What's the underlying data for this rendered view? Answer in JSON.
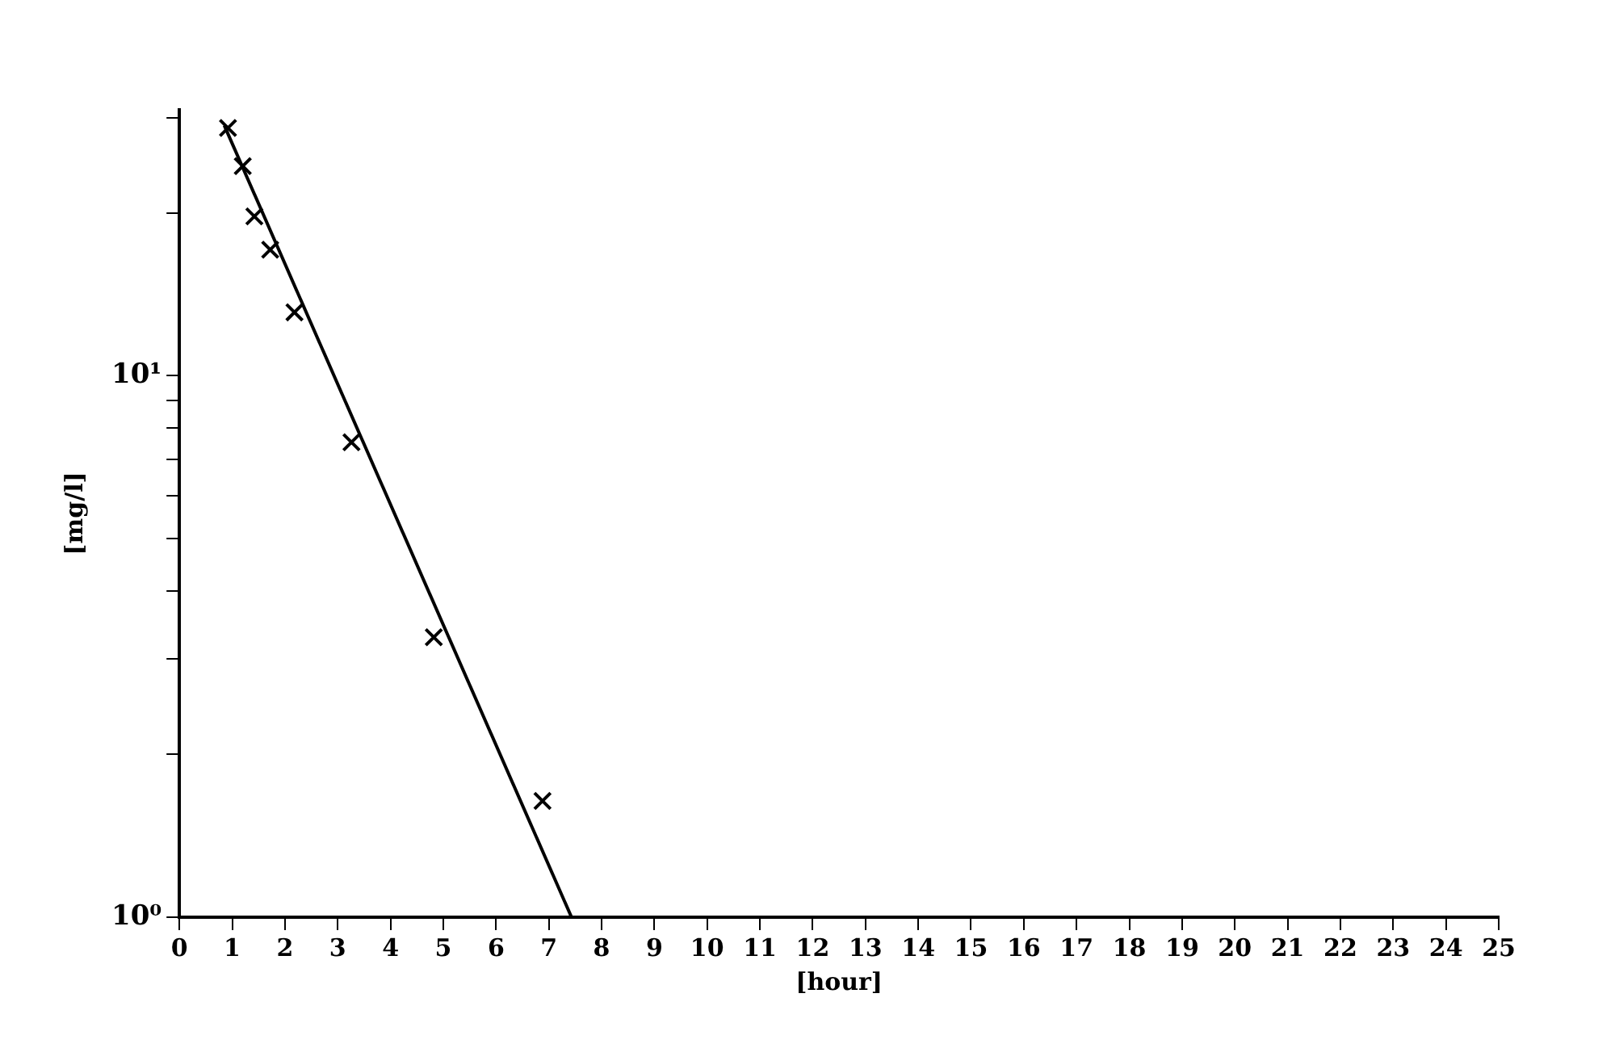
{
  "chart_data": {
    "type": "scatter",
    "xlabel": "[hour]",
    "ylabel": "[mg/l]",
    "log": "y",
    "grid": false,
    "legend": false,
    "xlim": [
      0,
      25
    ],
    "xticks": [
      0,
      1,
      2,
      3,
      4,
      5,
      6,
      7,
      8,
      9,
      10,
      11,
      12,
      13,
      14,
      15,
      16,
      17,
      18,
      19,
      20,
      21,
      22,
      23,
      24,
      25
    ],
    "ylim": [
      1,
      31
    ],
    "yticks": [
      {
        "value": 1,
        "label": "10⁰"
      },
      {
        "value": 2,
        "label": null
      },
      {
        "value": 3,
        "label": null
      },
      {
        "value": 4,
        "label": null
      },
      {
        "value": 5,
        "label": null
      },
      {
        "value": 6,
        "label": null
      },
      {
        "value": 7,
        "label": null
      },
      {
        "value": 8,
        "label": null
      },
      {
        "value": 9,
        "label": null
      },
      {
        "value": 10,
        "label": "10¹"
      },
      {
        "value": 20,
        "label": null
      },
      {
        "value": 30,
        "label": null
      }
    ],
    "series": [
      {
        "type": "scatter",
        "color": "#000000",
        "marker": "cross",
        "x": [
          0.92,
          1.2,
          1.42,
          1.72,
          2.18,
          3.26,
          4.82,
          6.88
        ],
        "values": [
          28.7,
          24.4,
          19.7,
          17.1,
          13.1,
          7.54,
          3.29,
          1.64
        ]
      },
      {
        "type": "line",
        "color": "#000000",
        "marker": "none",
        "line_style": "solid",
        "x": [
          0.85,
          7.43
        ],
        "values": [
          29,
          1
        ]
      }
    ]
  }
}
